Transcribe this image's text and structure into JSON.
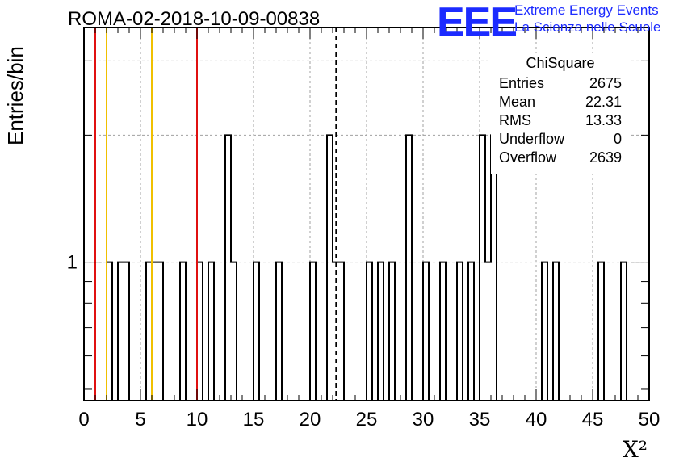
{
  "title": "ROMA-02-2018-10-09-00838",
  "logo": {
    "text": "EEE",
    "line1": "Extreme Energy Events",
    "line2": "La Scienza nelle Scuole",
    "color": "#1c2bff"
  },
  "stats": {
    "name": "ChiSquare",
    "rows": [
      {
        "label": "Entries",
        "value": "2675"
      },
      {
        "label": "Mean",
        "value": "22.31"
      },
      {
        "label": "RMS",
        "value": "13.33"
      },
      {
        "label": "Underflow",
        "value": "0"
      },
      {
        "label": "Overflow",
        "value": "2639"
      }
    ]
  },
  "chart_data": {
    "type": "bar",
    "histogram": true,
    "xlabel": "X²",
    "ylabel": "Entries/bin",
    "xlim": [
      0,
      50
    ],
    "ylim": [
      0.47,
      3.6
    ],
    "log_y": true,
    "grid": true,
    "x_ticks": [
      "0",
      "5",
      "10",
      "15",
      "20",
      "25",
      "30",
      "35",
      "40",
      "45",
      "50"
    ],
    "y_ticks": [
      "1"
    ],
    "bin_width": 0.5,
    "bins": [
      {
        "x": 2.0,
        "value": 1
      },
      {
        "x": 3.0,
        "value": 1
      },
      {
        "x": 3.5,
        "value": 1
      },
      {
        "x": 5.5,
        "value": 1
      },
      {
        "x": 6.0,
        "value": 1
      },
      {
        "x": 6.5,
        "value": 1
      },
      {
        "x": 8.5,
        "value": 1
      },
      {
        "x": 10.0,
        "value": 1
      },
      {
        "x": 11.0,
        "value": 1
      },
      {
        "x": 12.5,
        "value": 2
      },
      {
        "x": 13.0,
        "value": 1
      },
      {
        "x": 15.0,
        "value": 1
      },
      {
        "x": 17.0,
        "value": 1
      },
      {
        "x": 20.0,
        "value": 1
      },
      {
        "x": 21.5,
        "value": 2
      },
      {
        "x": 22.0,
        "value": 1
      },
      {
        "x": 22.5,
        "value": 1
      },
      {
        "x": 25.0,
        "value": 1
      },
      {
        "x": 26.0,
        "value": 1
      },
      {
        "x": 27.0,
        "value": 1
      },
      {
        "x": 28.5,
        "value": 2
      },
      {
        "x": 30.0,
        "value": 1
      },
      {
        "x": 31.5,
        "value": 1
      },
      {
        "x": 33.0,
        "value": 1
      },
      {
        "x": 34.0,
        "value": 1
      },
      {
        "x": 35.0,
        "value": 2
      },
      {
        "x": 35.5,
        "value": 1
      },
      {
        "x": 36.0,
        "value": 2
      },
      {
        "x": 40.5,
        "value": 1
      },
      {
        "x": 41.5,
        "value": 1
      },
      {
        "x": 45.5,
        "value": 1
      },
      {
        "x": 47.5,
        "value": 1
      }
    ],
    "vertical_lines": [
      {
        "x": 1.0,
        "color": "#e01010",
        "style": "solid"
      },
      {
        "x": 2.0,
        "color": "#f0c000",
        "style": "solid"
      },
      {
        "x": 6.0,
        "color": "#f0c000",
        "style": "solid"
      },
      {
        "x": 10.0,
        "color": "#e01010",
        "style": "solid"
      },
      {
        "x": 22.31,
        "color": "#000000",
        "style": "dashed"
      }
    ]
  }
}
